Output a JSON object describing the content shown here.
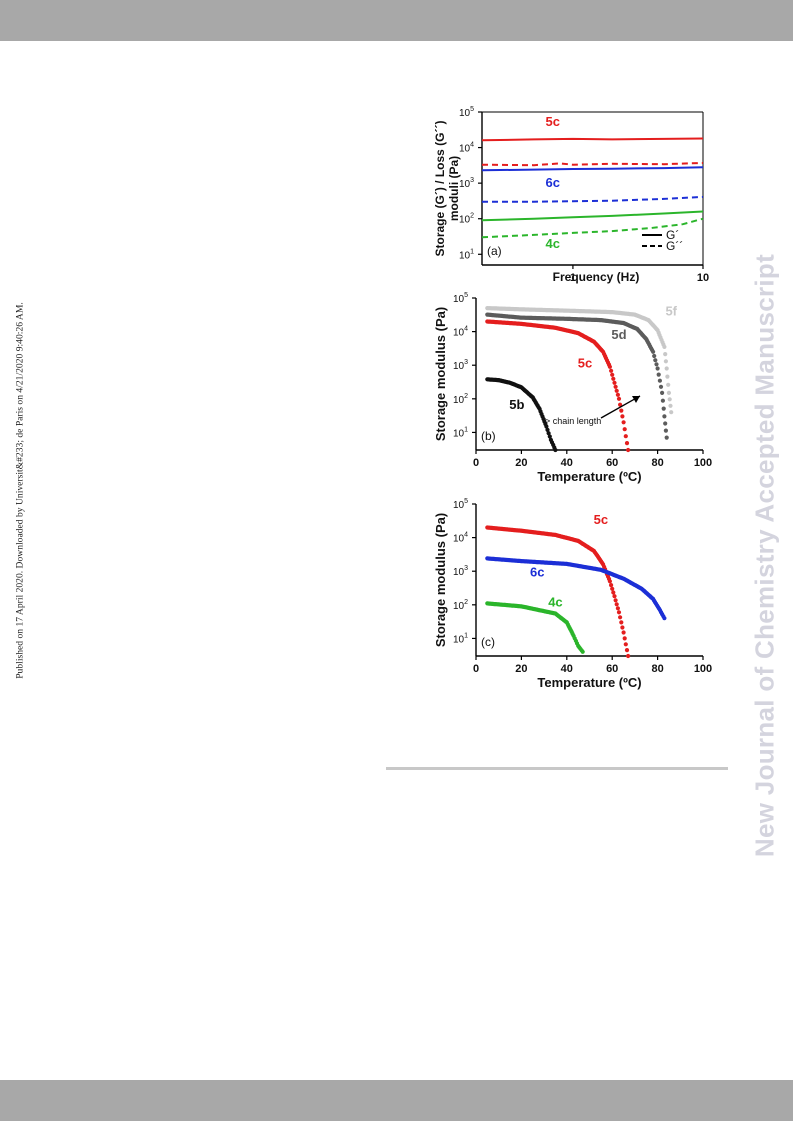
{
  "header_bar": "",
  "published_note": "Published on 17 April 2020. Downloaded by Universit&#233; de Paris on 4/21/2020 9:40:26 AM.",
  "watermark": "New Journal of Chemistry Accepted Manuscript",
  "chart_data": [
    {
      "id": "a",
      "type": "line",
      "panel_label": "(a)",
      "xlabel": "Frequency (Hz)",
      "ylabel_line1": "Storage (G´) / Loss (G´´)",
      "ylabel_line2": "moduli (Pa)",
      "x_scale": "log",
      "y_scale": "log",
      "xlim": [
        0.2,
        10
      ],
      "ylim": [
        5,
        100000
      ],
      "x_ticks": [
        "1",
        "10"
      ],
      "y_ticks": [
        {
          "base": "10",
          "exp": "1"
        },
        {
          "base": "10",
          "exp": "2"
        },
        {
          "base": "10",
          "exp": "3"
        },
        {
          "base": "10",
          "exp": "4"
        },
        {
          "base": "10",
          "exp": "5"
        }
      ],
      "legend": [
        {
          "label": "G´",
          "style": "solid"
        },
        {
          "label": "G´´",
          "style": "dashed"
        }
      ],
      "series": [
        {
          "name": "5c",
          "modulus": "G´",
          "color": "#e41e1e",
          "style": "solid",
          "points": [
            [
              0.2,
              16000
            ],
            [
              0.5,
              17000
            ],
            [
              1,
              17500
            ],
            [
              2,
              17000
            ],
            [
              5,
              17500
            ],
            [
              10,
              18000
            ]
          ]
        },
        {
          "name": "5c",
          "modulus": "G´´",
          "color": "#e41e1e",
          "style": "dashed",
          "points": [
            [
              0.2,
              3300
            ],
            [
              0.5,
              3200
            ],
            [
              0.8,
              3600
            ],
            [
              1,
              3300
            ],
            [
              2,
              3500
            ],
            [
              5,
              3400
            ],
            [
              10,
              3700
            ]
          ]
        },
        {
          "name": "6c",
          "modulus": "G´",
          "color": "#1c2fd6",
          "style": "solid",
          "points": [
            [
              0.2,
              2300
            ],
            [
              0.5,
              2400
            ],
            [
              1,
              2500
            ],
            [
              2,
              2550
            ],
            [
              5,
              2650
            ],
            [
              10,
              2800
            ]
          ]
        },
        {
          "name": "6c",
          "modulus": "G´´",
          "color": "#1c2fd6",
          "style": "dashed",
          "points": [
            [
              0.2,
              300
            ],
            [
              0.5,
              300
            ],
            [
              1,
              310
            ],
            [
              2,
              320
            ],
            [
              5,
              360
            ],
            [
              10,
              410
            ]
          ]
        },
        {
          "name": "4c",
          "modulus": "G´",
          "color": "#2bb52b",
          "style": "solid",
          "points": [
            [
              0.2,
              90
            ],
            [
              0.5,
              100
            ],
            [
              1,
              110
            ],
            [
              2,
              120
            ],
            [
              5,
              140
            ],
            [
              10,
              160
            ]
          ]
        },
        {
          "name": "4c",
          "modulus": "G´´",
          "color": "#2bb52b",
          "style": "dashed",
          "points": [
            [
              0.2,
              30
            ],
            [
              0.5,
              35
            ],
            [
              1,
              40
            ],
            [
              2,
              45
            ],
            [
              4,
              55
            ],
            [
              7,
              70
            ],
            [
              10,
              100
            ]
          ]
        }
      ],
      "labels": [
        {
          "text": "5c",
          "color": "#e41e1e",
          "x": 0.7,
          "y": 40000
        },
        {
          "text": "6c",
          "color": "#1c2fd6",
          "x": 0.7,
          "y": 780
        },
        {
          "text": "4c",
          "color": "#2bb52b",
          "x": 0.7,
          "y": 15
        }
      ]
    },
    {
      "id": "b",
      "type": "scatter",
      "panel_label": "(b)",
      "xlabel": "Temperature (ºC)",
      "ylabel": "Storage modulus (Pa)",
      "x_scale": "linear",
      "y_scale": "log",
      "xlim": [
        0,
        100
      ],
      "ylim": [
        3,
        100000
      ],
      "x_ticks": [
        "0",
        "20",
        "40",
        "60",
        "80",
        "100"
      ],
      "y_ticks": [
        {
          "base": "10",
          "exp": "1"
        },
        {
          "base": "10",
          "exp": "2"
        },
        {
          "base": "10",
          "exp": "3"
        },
        {
          "base": "10",
          "exp": "4"
        },
        {
          "base": "10",
          "exp": "5"
        }
      ],
      "annotation": "> chain length",
      "series": [
        {
          "name": "5f",
          "color": "#c8c8c8",
          "points": [
            [
              5,
              50000
            ],
            [
              20,
              46000
            ],
            [
              40,
              42000
            ],
            [
              60,
              38000
            ],
            [
              70,
              32000
            ],
            [
              76,
              22000
            ],
            [
              80,
              11000
            ],
            [
              83,
              3500
            ],
            [
              84,
              800
            ],
            [
              85,
              150
            ],
            [
              86,
              40
            ]
          ]
        },
        {
          "name": "5d",
          "color": "#5c5c5c",
          "points": [
            [
              5,
              32000
            ],
            [
              20,
              26000
            ],
            [
              40,
              24000
            ],
            [
              55,
              22000
            ],
            [
              65,
              18000
            ],
            [
              71,
              12000
            ],
            [
              75,
              6000
            ],
            [
              78,
              2500
            ],
            [
              80,
              800
            ],
            [
              82,
              150
            ],
            [
              83,
              30
            ],
            [
              84,
              7
            ]
          ]
        },
        {
          "name": "5c",
          "color": "#e41e1e",
          "points": [
            [
              5,
              20000
            ],
            [
              20,
              17000
            ],
            [
              35,
              13000
            ],
            [
              45,
              9000
            ],
            [
              52,
              5000
            ],
            [
              56,
              2500
            ],
            [
              59,
              900
            ],
            [
              61,
              300
            ],
            [
              63,
              100
            ],
            [
              65,
              20
            ],
            [
              67,
              3
            ]
          ]
        },
        {
          "name": "5b",
          "color": "#111111",
          "points": [
            [
              5,
              380
            ],
            [
              10,
              360
            ],
            [
              15,
              300
            ],
            [
              20,
              220
            ],
            [
              25,
              110
            ],
            [
              28,
              50
            ],
            [
              31,
              15
            ],
            [
              33,
              6
            ],
            [
              35,
              3
            ]
          ]
        }
      ],
      "labels": [
        {
          "text": "5f",
          "color": "#c8c8c8",
          "x": 86,
          "y": 30000
        },
        {
          "text": "5d",
          "color": "#5c5c5c",
          "x": 63,
          "y": 6000
        },
        {
          "text": "5c",
          "color": "#e41e1e",
          "x": 48,
          "y": 850
        },
        {
          "text": "5b",
          "color": "#111111",
          "x": 18,
          "y": 50
        }
      ]
    },
    {
      "id": "c",
      "type": "scatter",
      "panel_label": "(c)",
      "xlabel": "Temperature (ºC)",
      "ylabel": "Storage modulus (Pa)",
      "x_scale": "linear",
      "y_scale": "log",
      "xlim": [
        0,
        100
      ],
      "ylim": [
        3,
        100000
      ],
      "x_ticks": [
        "0",
        "20",
        "40",
        "60",
        "80",
        "100"
      ],
      "y_ticks": [
        {
          "base": "10",
          "exp": "1"
        },
        {
          "base": "10",
          "exp": "2"
        },
        {
          "base": "10",
          "exp": "3"
        },
        {
          "base": "10",
          "exp": "4"
        },
        {
          "base": "10",
          "exp": "5"
        }
      ],
      "series": [
        {
          "name": "5c",
          "color": "#e41e1e",
          "points": [
            [
              5,
              20000
            ],
            [
              20,
              16000
            ],
            [
              35,
              12000
            ],
            [
              45,
              8000
            ],
            [
              52,
              4000
            ],
            [
              56,
              1600
            ],
            [
              59,
              500
            ],
            [
              61,
              180
            ],
            [
              63,
              60
            ],
            [
              65,
              15
            ],
            [
              67,
              3
            ]
          ]
        },
        {
          "name": "6c",
          "color": "#1c2fd6",
          "points": [
            [
              5,
              2400
            ],
            [
              20,
              2000
            ],
            [
              40,
              1650
            ],
            [
              55,
              1100
            ],
            [
              65,
              600
            ],
            [
              73,
              300
            ],
            [
              78,
              150
            ],
            [
              81,
              70
            ],
            [
              83,
              40
            ]
          ]
        },
        {
          "name": "4c",
          "color": "#2bb52b",
          "points": [
            [
              5,
              110
            ],
            [
              20,
              90
            ],
            [
              35,
              55
            ],
            [
              40,
              30
            ],
            [
              43,
              12
            ],
            [
              45,
              6
            ],
            [
              47,
              4
            ]
          ]
        }
      ],
      "labels": [
        {
          "text": "5c",
          "color": "#e41e1e",
          "x": 55,
          "y": 25000
        },
        {
          "text": "6c",
          "color": "#1c2fd6",
          "x": 27,
          "y": 700
        },
        {
          "text": "4c",
          "color": "#2bb52b",
          "x": 35,
          "y": 90
        }
      ]
    }
  ]
}
